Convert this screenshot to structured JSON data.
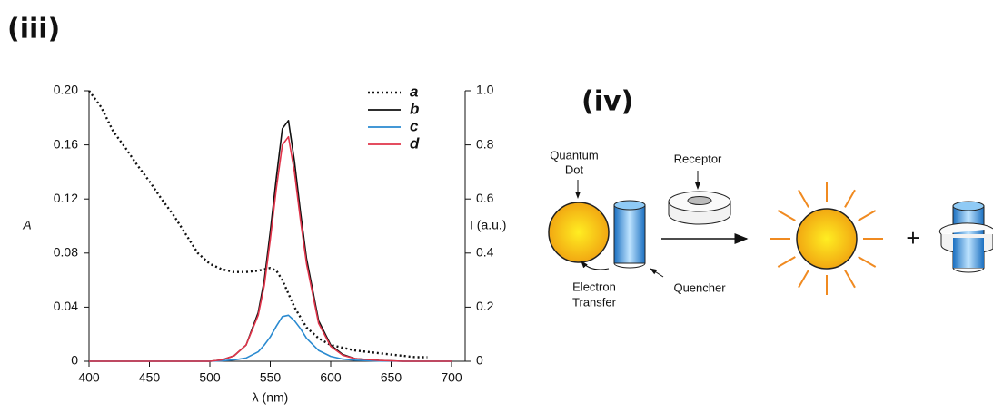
{
  "chart_data": {
    "type": "line",
    "title": "(iii)",
    "xlabel": "λ (nm)",
    "ylabel": "A",
    "y2label": "I (a.u.)",
    "xlim": [
      400,
      700
    ],
    "xticks": [
      400,
      450,
      500,
      550,
      600,
      650,
      700
    ],
    "ylim": [
      0,
      0.2
    ],
    "yticks": [
      0,
      0.04,
      0.08,
      0.12,
      0.16,
      {
        "value": 0.2,
        "label": "0.20"
      }
    ],
    "y2lim": [
      0,
      1
    ],
    "y2ticks": [
      0,
      0.2,
      0.4,
      0.6,
      0.8,
      {
        "value": 1,
        "label": "1.0"
      }
    ],
    "legend": "upper right",
    "series": [
      {
        "name": "a",
        "color": "#111111",
        "dash": "dotted",
        "axis": "y",
        "x": [
          400,
          410,
          420,
          430,
          440,
          450,
          460,
          470,
          480,
          490,
          500,
          510,
          520,
          530,
          540,
          550,
          555,
          560,
          570,
          580,
          590,
          600,
          610,
          620,
          630,
          640,
          650,
          660,
          670,
          680
        ],
        "values": [
          0.2,
          0.188,
          0.17,
          0.158,
          0.145,
          0.133,
          0.12,
          0.108,
          0.094,
          0.08,
          0.072,
          0.068,
          0.066,
          0.066,
          0.067,
          0.069,
          0.067,
          0.06,
          0.04,
          0.025,
          0.017,
          0.012,
          0.01,
          0.008,
          0.007,
          0.006,
          0.005,
          0.004,
          0.003,
          0.003
        ]
      },
      {
        "name": "b",
        "color": "#111111",
        "axis": "y2",
        "x": [
          400,
          500,
          510,
          520,
          530,
          540,
          545,
          550,
          555,
          560,
          565,
          570,
          575,
          580,
          590,
          600,
          610,
          620,
          640,
          660,
          680,
          700
        ],
        "values": [
          0,
          0,
          0.005,
          0.02,
          0.06,
          0.18,
          0.3,
          0.48,
          0.68,
          0.86,
          0.89,
          0.74,
          0.55,
          0.38,
          0.15,
          0.06,
          0.025,
          0.01,
          0.003,
          0,
          0,
          0
        ]
      },
      {
        "name": "c",
        "color": "#2a8ad0",
        "axis": "y2",
        "x": [
          400,
          500,
          510,
          520,
          530,
          540,
          545,
          550,
          555,
          560,
          565,
          570,
          575,
          580,
          590,
          600,
          610,
          620,
          640,
          660,
          680,
          700
        ],
        "values": [
          0,
          0,
          0.002,
          0.005,
          0.012,
          0.035,
          0.06,
          0.09,
          0.13,
          0.165,
          0.17,
          0.15,
          0.12,
          0.085,
          0.04,
          0.018,
          0.008,
          0.004,
          0.001,
          0,
          0,
          0
        ]
      },
      {
        "name": "d",
        "color": "#e0344a",
        "axis": "y2",
        "x": [
          400,
          500,
          510,
          520,
          530,
          540,
          545,
          550,
          555,
          560,
          565,
          570,
          575,
          580,
          590,
          600,
          610,
          620,
          640,
          660,
          680,
          700
        ],
        "values": [
          0,
          0,
          0.005,
          0.02,
          0.06,
          0.17,
          0.28,
          0.45,
          0.64,
          0.8,
          0.83,
          0.7,
          0.52,
          0.36,
          0.14,
          0.055,
          0.022,
          0.01,
          0.003,
          0,
          0,
          0
        ]
      }
    ]
  },
  "diagram": {
    "label": "(iv)",
    "quantum_dot": [
      "Quantum",
      "Dot"
    ],
    "receptor": "Receptor",
    "electron_transfer": [
      "Electron",
      "Transfer"
    ],
    "quencher": "Quencher",
    "plus": "+"
  }
}
